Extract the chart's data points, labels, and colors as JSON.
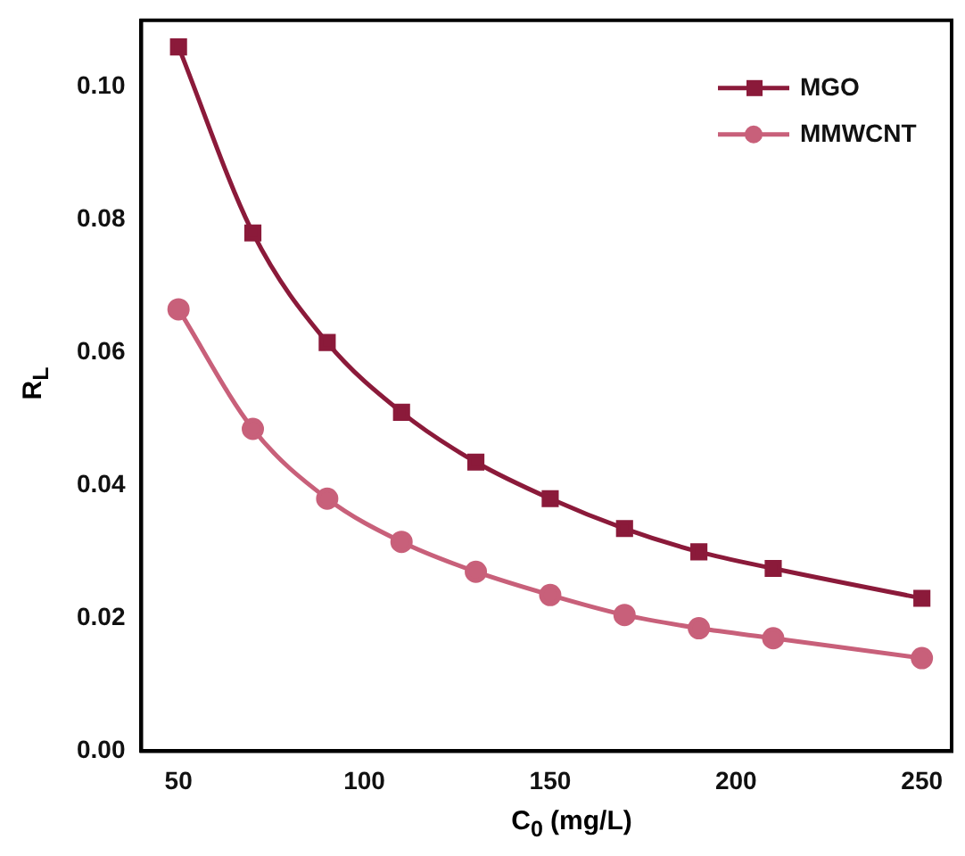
{
  "chart_data": {
    "type": "line",
    "xlabel": "C$_{0}$ (mg/L)",
    "ylabel": "R$_{L}$",
    "x": [
      50,
      70,
      90,
      110,
      130,
      150,
      170,
      190,
      210,
      250
    ],
    "series": [
      {
        "name": "MGO",
        "color": "#8b1a3a",
        "marker": "square",
        "values": [
          0.106,
          0.078,
          0.0615,
          0.051,
          0.0435,
          0.038,
          0.0335,
          0.03,
          0.0275,
          0.023
        ]
      },
      {
        "name": "MMWCNT",
        "color": "#c8607a",
        "marker": "circle",
        "values": [
          0.0665,
          0.0485,
          0.038,
          0.0315,
          0.027,
          0.0235,
          0.0205,
          0.0185,
          0.017,
          0.014
        ]
      }
    ],
    "xlim": [
      40,
      258
    ],
    "xticks": [
      50,
      100,
      150,
      200,
      250
    ],
    "ylim": [
      0,
      0.11
    ],
    "yticks": [
      {
        "value": 0,
        "label": "0.00"
      },
      {
        "value": 0.02,
        "label": "0.02"
      },
      {
        "value": 0.04,
        "label": "0.04"
      },
      {
        "value": 0.06,
        "label": "0.06"
      },
      {
        "value": 0.08,
        "label": "0.08"
      },
      {
        "value": 0.1,
        "label": "0.10"
      }
    ],
    "grid": false,
    "legend": "top right"
  }
}
